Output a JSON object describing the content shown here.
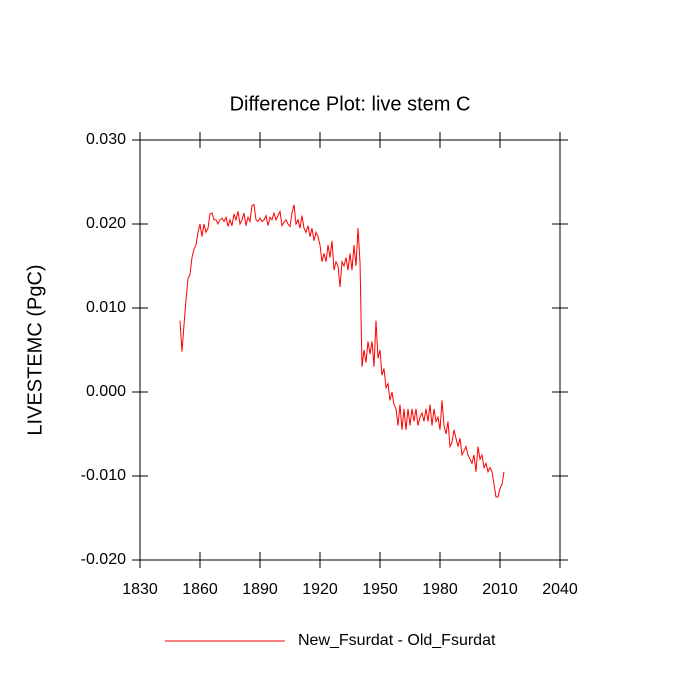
{
  "chart_data": {
    "type": "line",
    "title": "Difference Plot: live stem C",
    "y_label": "LIVESTEMC  (PgC)",
    "x": [
      1850,
      1851,
      1852,
      1853,
      1854,
      1855,
      1856,
      1857,
      1858,
      1859,
      1860,
      1861,
      1862,
      1863,
      1864,
      1865,
      1866,
      1867,
      1868,
      1869,
      1870,
      1871,
      1872,
      1873,
      1874,
      1875,
      1876,
      1877,
      1878,
      1879,
      1880,
      1881,
      1882,
      1883,
      1884,
      1885,
      1886,
      1887,
      1888,
      1889,
      1890,
      1891,
      1892,
      1893,
      1894,
      1895,
      1896,
      1897,
      1898,
      1899,
      1900,
      1901,
      1902,
      1903,
      1904,
      1905,
      1906,
      1907,
      1908,
      1909,
      1910,
      1911,
      1912,
      1913,
      1914,
      1915,
      1916,
      1917,
      1918,
      1919,
      1920,
      1921,
      1922,
      1923,
      1924,
      1925,
      1926,
      1927,
      1928,
      1929,
      1930,
      1931,
      1932,
      1933,
      1934,
      1935,
      1936,
      1937,
      1938,
      1939,
      1940,
      1941,
      1942,
      1943,
      1944,
      1945,
      1946,
      1947,
      1948,
      1949,
      1950,
      1951,
      1952,
      1953,
      1954,
      1955,
      1956,
      1957,
      1958,
      1959,
      1960,
      1961,
      1962,
      1963,
      1964,
      1965,
      1966,
      1967,
      1968,
      1969,
      1970,
      1971,
      1972,
      1973,
      1974,
      1975,
      1976,
      1977,
      1978,
      1979,
      1980,
      1981,
      1982,
      1983,
      1984,
      1985,
      1986,
      1987,
      1988,
      1989,
      1990,
      1991,
      1992,
      1993,
      1994,
      1995,
      1996,
      1997,
      1998,
      1999,
      2000,
      2001,
      2002,
      2003,
      2004,
      2005,
      2006,
      2007,
      2008,
      2009,
      2010,
      2011,
      2012
    ],
    "series": [
      {
        "name": "New_Fsurdat - Old_Fsurdat",
        "color": "#ff0000",
        "values": [
          0.0085,
          0.0048,
          0.008,
          0.011,
          0.0135,
          0.014,
          0.016,
          0.017,
          0.0175,
          0.019,
          0.02,
          0.0185,
          0.02,
          0.019,
          0.0195,
          0.0212,
          0.0213,
          0.0205,
          0.0205,
          0.02,
          0.0205,
          0.0207,
          0.0203,
          0.0208,
          0.0197,
          0.0205,
          0.0198,
          0.0212,
          0.0205,
          0.0215,
          0.02,
          0.0205,
          0.0213,
          0.0198,
          0.0208,
          0.0203,
          0.0222,
          0.0223,
          0.0205,
          0.0203,
          0.0207,
          0.0203,
          0.0205,
          0.021,
          0.0198,
          0.0208,
          0.0205,
          0.0213,
          0.0205,
          0.021,
          0.0215,
          0.0198,
          0.0202,
          0.0205,
          0.02,
          0.0197,
          0.0213,
          0.0223,
          0.02,
          0.0205,
          0.0195,
          0.021,
          0.0195,
          0.019,
          0.0198,
          0.0185,
          0.0195,
          0.018,
          0.019,
          0.0185,
          0.0175,
          0.0155,
          0.0165,
          0.0155,
          0.0175,
          0.016,
          0.018,
          0.0145,
          0.0155,
          0.015,
          0.0125,
          0.0155,
          0.015,
          0.016,
          0.0145,
          0.0165,
          0.0145,
          0.0175,
          0.015,
          0.0195,
          0.0155,
          0.003,
          0.005,
          0.0035,
          0.006,
          0.0045,
          0.006,
          0.003,
          0.0085,
          0.004,
          0.005,
          0.002,
          0.0028,
          0.0005,
          0.001,
          -0.001,
          0.0,
          -0.0015,
          -0.002,
          -0.004,
          -0.0015,
          -0.0045,
          -0.002,
          -0.0045,
          -0.002,
          -0.004,
          -0.002,
          -0.0035,
          -0.002,
          -0.004,
          -0.003,
          -0.0025,
          -0.0035,
          -0.002,
          -0.0035,
          -0.0015,
          -0.004,
          -0.002,
          -0.0035,
          -0.003,
          -0.0045,
          -0.001,
          -0.004,
          -0.005,
          -0.0035,
          -0.0065,
          -0.006,
          -0.0045,
          -0.0055,
          -0.0065,
          -0.0055,
          -0.0075,
          -0.007,
          -0.0065,
          -0.0075,
          -0.008,
          -0.0085,
          -0.0075,
          -0.0095,
          -0.0065,
          -0.008,
          -0.0075,
          -0.009,
          -0.0085,
          -0.0095,
          -0.009,
          -0.0095,
          -0.011,
          -0.0125,
          -0.0125,
          -0.0115,
          -0.011,
          -0.0095
        ]
      }
    ],
    "xlim": [
      1830,
      2040
    ],
    "xticks": [
      1830,
      1860,
      1890,
      1920,
      1950,
      1980,
      2010,
      2040
    ],
    "ylim": [
      -0.02,
      0.03
    ],
    "yticks": [
      {
        "value": -0.02,
        "label": "-0.020"
      },
      {
        "value": -0.01,
        "label": "-0.010"
      },
      {
        "value": 0,
        "label": "0.000"
      },
      {
        "value": 0.01,
        "label": "0.010"
      },
      {
        "value": 0.02,
        "label": "0.020"
      },
      {
        "value": 0.03,
        "label": "0.030"
      }
    ],
    "legend": "bottom"
  }
}
